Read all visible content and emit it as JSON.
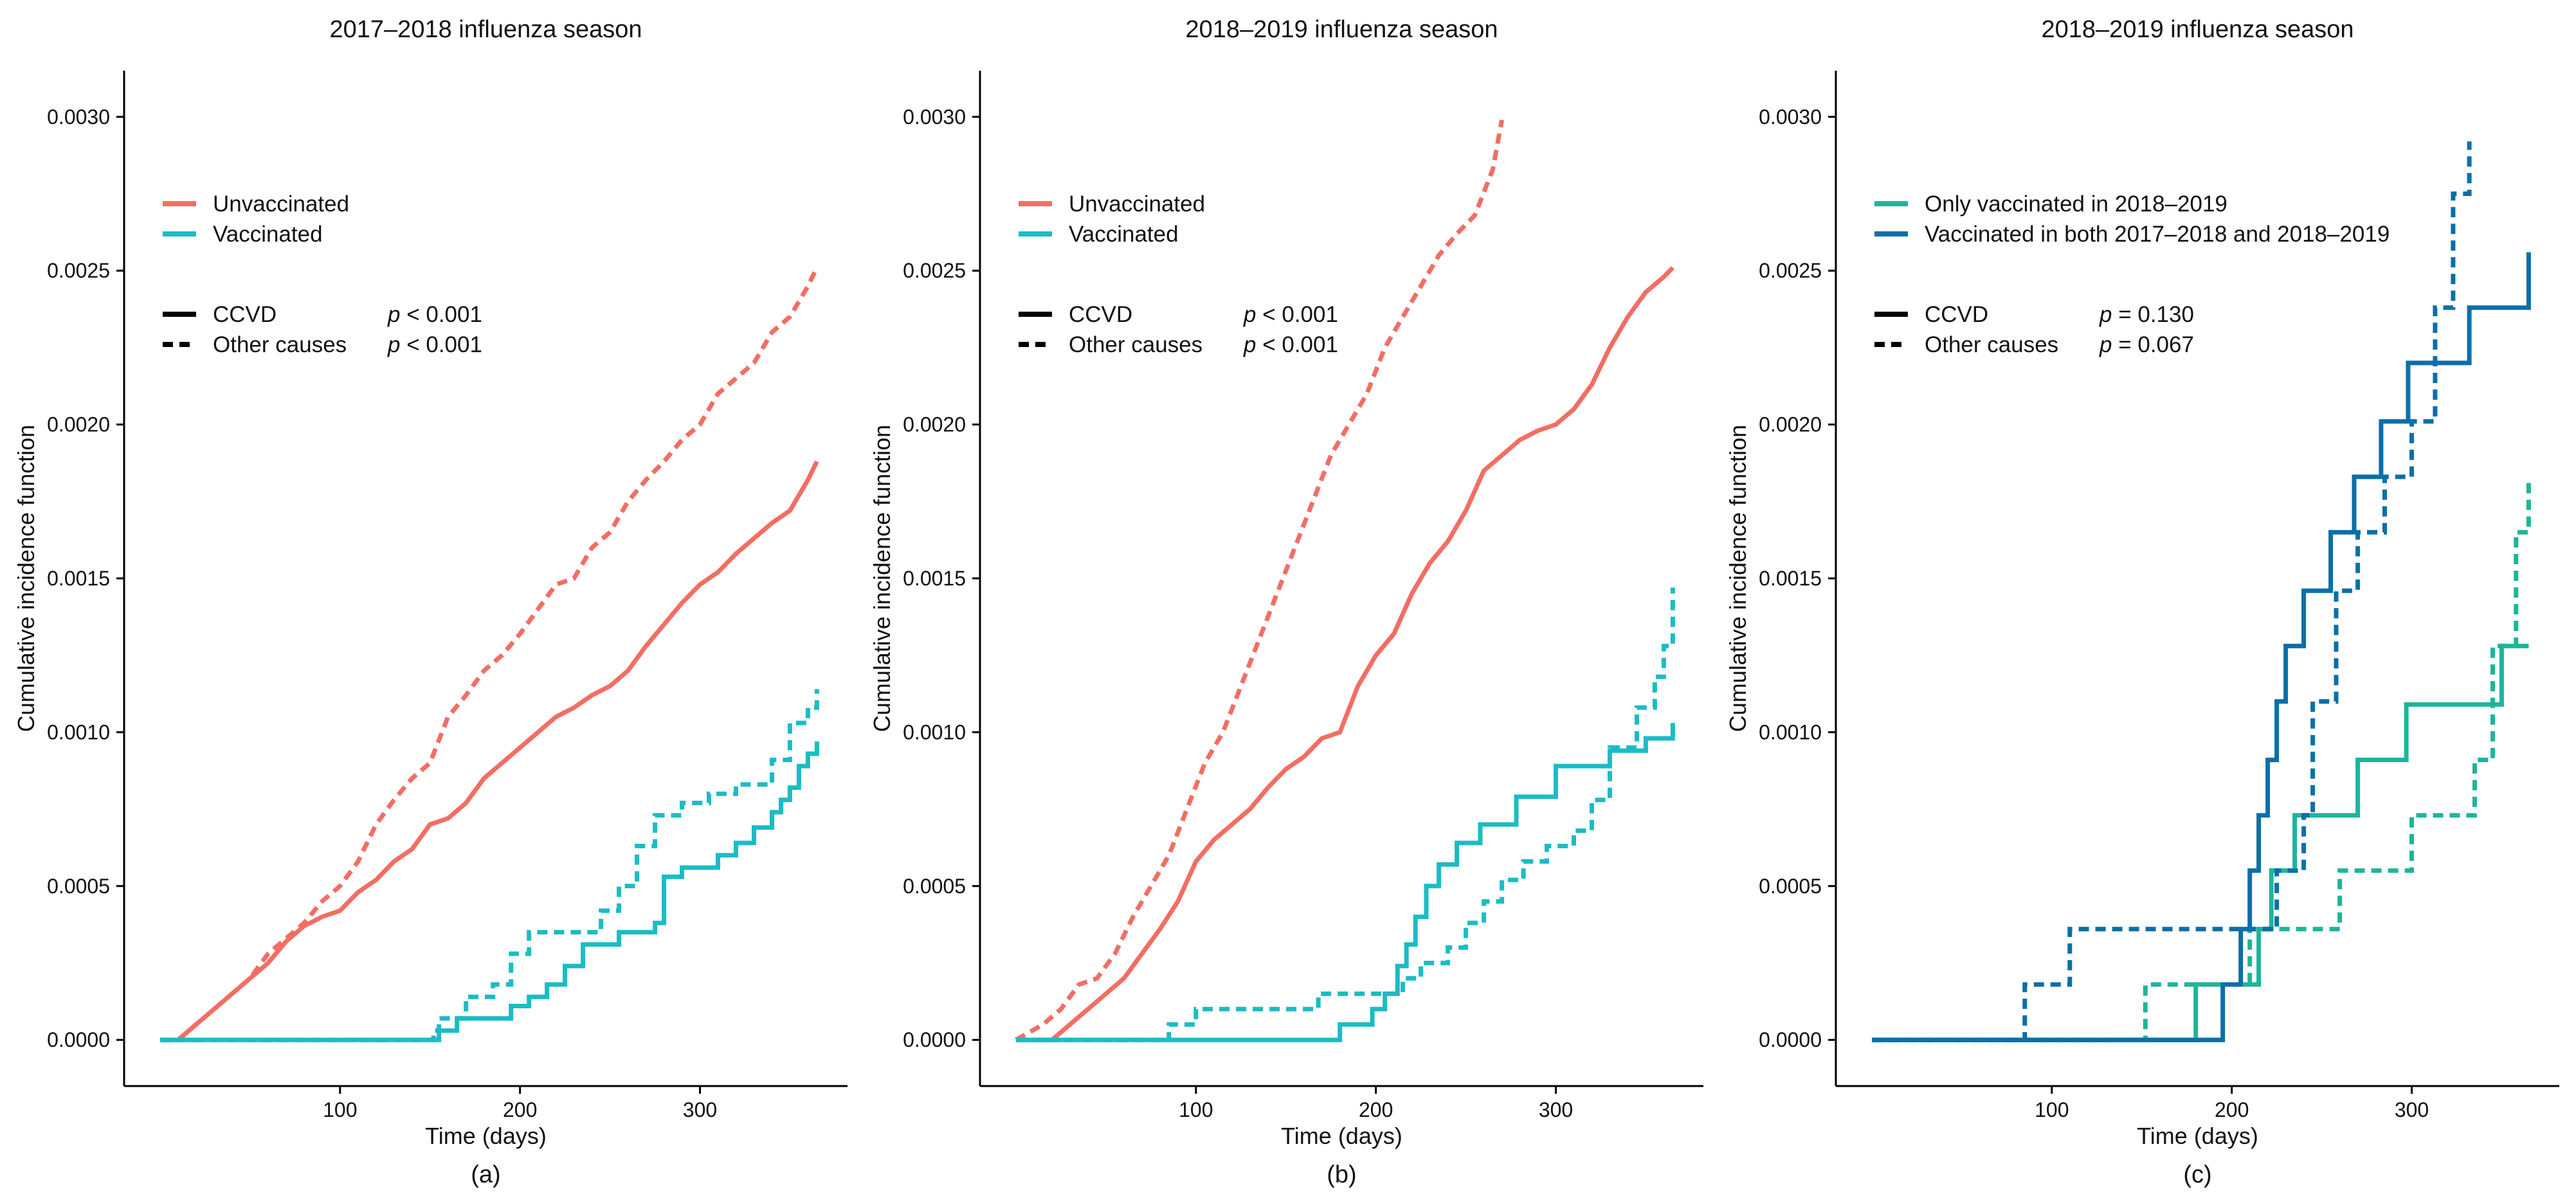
{
  "colors": {
    "unvaccinated": "#F26E63",
    "vaccinated": "#1BBCC4",
    "only2018_2019": "#1DB59A",
    "both_seasons": "#0A6FA8",
    "axis": "#000000",
    "legend_black": "#000000"
  },
  "chart_data": [
    {
      "type": "line",
      "panel_label": "(a)",
      "title": "2017–2018 influenza season",
      "xlabel": "Time (days)",
      "ylabel": "Cumulative incidence function",
      "xlim": [
        -20,
        382
      ],
      "ylim": [
        -0.00015,
        0.00315
      ],
      "xticks": [
        100,
        200,
        300
      ],
      "xtick_labels": [
        "100",
        "200",
        "300"
      ],
      "yticks": [
        0,
        0.0005,
        0.001,
        0.0015,
        0.002,
        0.0025,
        0.003
      ],
      "ytick_labels": [
        "0.0000",
        "0.0005",
        "0.0010",
        "0.0015",
        "0.0020",
        "0.0025",
        "0.0030"
      ],
      "grid": false,
      "legend": {
        "groups": [
          {
            "label": "Unvaccinated",
            "color_key": "unvaccinated"
          },
          {
            "label": "Vaccinated",
            "color_key": "vaccinated"
          }
        ],
        "causes": [
          {
            "label": "CCVD",
            "style": "solid",
            "p_symbol": "p",
            "p_text": "< 0.001"
          },
          {
            "label": "Other causes",
            "style": "dashed",
            "p_symbol": "p",
            "p_text": "< 0.001"
          }
        ]
      },
      "series": [
        {
          "name": "Unvaccinated – CCVD",
          "color_key": "unvaccinated",
          "style": "solid",
          "step": false,
          "x": [
            0,
            10,
            20,
            30,
            40,
            50,
            60,
            70,
            80,
            90,
            100,
            110,
            120,
            130,
            140,
            150,
            160,
            170,
            180,
            190,
            200,
            210,
            220,
            230,
            240,
            250,
            260,
            270,
            280,
            290,
            300,
            310,
            320,
            330,
            340,
            350,
            360,
            365
          ],
          "y": [
            0,
            0,
            5e-05,
            0.0001,
            0.00015,
            0.0002,
            0.00025,
            0.00032,
            0.00037,
            0.0004,
            0.00042,
            0.00048,
            0.00052,
            0.00058,
            0.00062,
            0.0007,
            0.00072,
            0.00077,
            0.00085,
            0.0009,
            0.00095,
            0.001,
            0.00105,
            0.00108,
            0.00112,
            0.00115,
            0.0012,
            0.00128,
            0.00135,
            0.00142,
            0.00148,
            0.00152,
            0.00158,
            0.00163,
            0.00168,
            0.00172,
            0.00182,
            0.00188
          ]
        },
        {
          "name": "Unvaccinated – Other causes",
          "color_key": "unvaccinated",
          "style": "dashed",
          "step": false,
          "x": [
            0,
            10,
            20,
            30,
            40,
            50,
            60,
            70,
            80,
            90,
            100,
            110,
            120,
            130,
            140,
            150,
            160,
            170,
            180,
            190,
            200,
            210,
            220,
            230,
            240,
            250,
            260,
            270,
            280,
            290,
            300,
            310,
            320,
            330,
            340,
            350,
            360,
            365
          ],
          "y": [
            0,
            0,
            5e-05,
            0.0001,
            0.00015,
            0.0002,
            0.00028,
            0.00033,
            0.00038,
            0.00045,
            0.0005,
            0.00058,
            0.0007,
            0.00078,
            0.00085,
            0.0009,
            0.00105,
            0.00112,
            0.0012,
            0.00125,
            0.00132,
            0.0014,
            0.00148,
            0.0015,
            0.0016,
            0.00165,
            0.00175,
            0.00182,
            0.00188,
            0.00195,
            0.002,
            0.0021,
            0.00215,
            0.0022,
            0.0023,
            0.00235,
            0.00245,
            0.00251
          ]
        },
        {
          "name": "Vaccinated – CCVD",
          "color_key": "vaccinated",
          "style": "solid",
          "step": true,
          "x": [
            0,
            155,
            165,
            185,
            195,
            205,
            215,
            225,
            235,
            255,
            275,
            280,
            290,
            300,
            310,
            320,
            330,
            340,
            345,
            350,
            355,
            360,
            365
          ],
          "y": [
            0,
            3e-05,
            7e-05,
            7e-05,
            0.00011,
            0.00014,
            0.00018,
            0.00024,
            0.00031,
            0.00035,
            0.00038,
            0.00053,
            0.00056,
            0.00056,
            0.0006,
            0.00064,
            0.00069,
            0.00074,
            0.00078,
            0.00082,
            0.00089,
            0.00093,
            0.00097
          ]
        },
        {
          "name": "Vaccinated – Other causes",
          "color_key": "vaccinated",
          "style": "dashed",
          "step": true,
          "x": [
            0,
            152,
            155,
            170,
            185,
            195,
            205,
            225,
            245,
            255,
            265,
            275,
            290,
            305,
            320,
            340,
            350,
            360,
            365
          ],
          "y": [
            0,
            3e-05,
            7e-05,
            0.00014,
            0.00018,
            0.00028,
            0.00035,
            0.00035,
            0.00042,
            0.0005,
            0.00063,
            0.00073,
            0.00077,
            0.0008,
            0.00083,
            0.00091,
            0.00103,
            0.00108,
            0.00114
          ]
        }
      ]
    },
    {
      "type": "line",
      "panel_label": "(b)",
      "title": "2018–2019 influenza season",
      "xlabel": "Time (days)",
      "ylabel": "Cumulative incidence function",
      "xlim": [
        -20,
        382
      ],
      "ylim": [
        -0.00015,
        0.00315
      ],
      "xticks": [
        100,
        200,
        300
      ],
      "xtick_labels": [
        "100",
        "200",
        "300"
      ],
      "yticks": [
        0,
        0.0005,
        0.001,
        0.0015,
        0.002,
        0.0025,
        0.003
      ],
      "ytick_labels": [
        "0.0000",
        "0.0005",
        "0.0010",
        "0.0015",
        "0.0020",
        "0.0025",
        "0.0030"
      ],
      "grid": false,
      "legend": {
        "groups": [
          {
            "label": "Unvaccinated",
            "color_key": "unvaccinated"
          },
          {
            "label": "Vaccinated",
            "color_key": "vaccinated"
          }
        ],
        "causes": [
          {
            "label": "CCVD",
            "style": "solid",
            "p_symbol": "p",
            "p_text": "< 0.001"
          },
          {
            "label": "Other causes",
            "style": "dashed",
            "p_symbol": "p",
            "p_text": "< 0.001"
          }
        ]
      },
      "series": [
        {
          "name": "Unvaccinated – CCVD",
          "color_key": "unvaccinated",
          "style": "solid",
          "step": false,
          "x": [
            0,
            20,
            30,
            40,
            50,
            60,
            70,
            80,
            90,
            100,
            110,
            120,
            130,
            140,
            150,
            160,
            170,
            180,
            190,
            200,
            210,
            220,
            230,
            240,
            250,
            260,
            270,
            280,
            290,
            300,
            310,
            320,
            330,
            340,
            350,
            360,
            365
          ],
          "y": [
            0,
            0,
            5e-05,
            0.0001,
            0.00015,
            0.0002,
            0.00028,
            0.00036,
            0.00045,
            0.00058,
            0.00065,
            0.0007,
            0.00075,
            0.00082,
            0.00088,
            0.00092,
            0.00098,
            0.001,
            0.00115,
            0.00125,
            0.00132,
            0.00145,
            0.00155,
            0.00162,
            0.00172,
            0.00185,
            0.0019,
            0.00195,
            0.00198,
            0.002,
            0.00205,
            0.00213,
            0.00225,
            0.00235,
            0.00243,
            0.00248,
            0.00251
          ]
        },
        {
          "name": "Unvaccinated – Other causes",
          "color_key": "unvaccinated",
          "style": "dashed",
          "step": false,
          "x": [
            0,
            15,
            25,
            35,
            45,
            55,
            65,
            75,
            85,
            95,
            105,
            115,
            125,
            135,
            145,
            155,
            165,
            175,
            185,
            195,
            205,
            215,
            225,
            235,
            245,
            255,
            265,
            270
          ],
          "y": [
            0,
            5e-05,
            0.0001,
            0.00018,
            0.0002,
            0.00028,
            0.0004,
            0.0005,
            0.0006,
            0.00075,
            0.0009,
            0.001,
            0.00115,
            0.0013,
            0.00145,
            0.0016,
            0.00175,
            0.0019,
            0.002,
            0.0021,
            0.00225,
            0.00235,
            0.00245,
            0.00255,
            0.00262,
            0.00268,
            0.00283,
            0.00299
          ]
        },
        {
          "name": "Vaccinated – CCVD",
          "color_key": "vaccinated",
          "style": "solid",
          "step": true,
          "x": [
            0,
            180,
            198,
            205,
            212,
            217,
            222,
            228,
            235,
            245,
            258,
            278,
            300,
            318,
            330,
            350,
            360,
            365
          ],
          "y": [
            0,
            5e-05,
            0.0001,
            0.00015,
            0.00024,
            0.00031,
            0.0004,
            0.0005,
            0.00057,
            0.00064,
            0.0007,
            0.00079,
            0.00089,
            0.00089,
            0.00094,
            0.00098,
            0.00098,
            0.00103
          ]
        },
        {
          "name": "Vaccinated – Other causes",
          "color_key": "vaccinated",
          "style": "dashed",
          "step": true,
          "x": [
            0,
            85,
            100,
            130,
            168,
            205,
            215,
            225,
            240,
            250,
            260,
            270,
            282,
            295,
            310,
            320,
            330,
            345,
            355,
            360,
            365
          ],
          "y": [
            0,
            5e-05,
            0.0001,
            0.0001,
            0.00015,
            0.00015,
            0.0002,
            0.00025,
            0.0003,
            0.00038,
            0.00045,
            0.00052,
            0.00058,
            0.00063,
            0.00068,
            0.00078,
            0.00095,
            0.00108,
            0.00118,
            0.00128,
            0.00147
          ]
        }
      ]
    },
    {
      "type": "line",
      "panel_label": "(c)",
      "title": "2018–2019 influenza season",
      "xlabel": "Time (days)",
      "ylabel": "Cumulative incidence function",
      "xlim": [
        -20,
        382
      ],
      "ylim": [
        -0.00015,
        0.00315
      ],
      "xticks": [
        100,
        200,
        300
      ],
      "xtick_labels": [
        "100",
        "200",
        "300"
      ],
      "yticks": [
        0,
        0.0005,
        0.001,
        0.0015,
        0.002,
        0.0025,
        0.003
      ],
      "ytick_labels": [
        "0.0000",
        "0.0005",
        "0.0010",
        "0.0015",
        "0.0020",
        "0.0025",
        "0.0030"
      ],
      "grid": false,
      "legend": {
        "groups": [
          {
            "label": "Only vaccinated in 2018–2019",
            "color_key": "only2018_2019"
          },
          {
            "label": "Vaccinated in both 2017–2018 and 2018–2019",
            "color_key": "both_seasons"
          }
        ],
        "causes": [
          {
            "label": "CCVD",
            "style": "solid",
            "p_symbol": "p",
            "p_text": "= 0.130"
          },
          {
            "label": "Other causes",
            "style": "dashed",
            "p_symbol": "p",
            "p_text": "= 0.067"
          }
        ]
      },
      "series": [
        {
          "name": "Only vaccinated in 2018–2019 – CCVD",
          "color_key": "only2018_2019",
          "style": "solid",
          "step": true,
          "x": [
            0,
            180,
            200,
            215,
            222,
            235,
            258,
            270,
            297,
            340,
            350,
            365
          ],
          "y": [
            0,
            0.00018,
            0.00018,
            0.00036,
            0.00055,
            0.00073,
            0.00073,
            0.00091,
            0.00109,
            0.00109,
            0.00128,
            0.00128
          ]
        },
        {
          "name": "Only vaccinated in 2018–2019 – Other causes",
          "color_key": "only2018_2019",
          "style": "dashed",
          "step": true,
          "x": [
            0,
            152,
            180,
            210,
            218,
            260,
            300,
            320,
            335,
            345,
            358,
            365
          ],
          "y": [
            0,
            0.00018,
            0.00018,
            0.00036,
            0.00036,
            0.00055,
            0.00073,
            0.00073,
            0.00091,
            0.00128,
            0.00165,
            0.00183
          ]
        },
        {
          "name": "Vaccinated in both – CCVD",
          "color_key": "both_seasons",
          "style": "solid",
          "step": true,
          "x": [
            0,
            195,
            205,
            210,
            215,
            220,
            225,
            230,
            240,
            255,
            268,
            283,
            298,
            318,
            332,
            355,
            365
          ],
          "y": [
            0,
            0.00018,
            0.00036,
            0.00055,
            0.00073,
            0.00091,
            0.0011,
            0.00128,
            0.00146,
            0.00165,
            0.00183,
            0.00201,
            0.0022,
            0.0022,
            0.00238,
            0.00238,
            0.00256
          ]
        },
        {
          "name": "Vaccinated in both – Other causes",
          "color_key": "both_seasons",
          "style": "dashed",
          "step": true,
          "x": [
            0,
            85,
            110,
            185,
            210,
            225,
            240,
            245,
            258,
            270,
            285,
            300,
            313,
            323,
            330,
            332
          ],
          "y": [
            0,
            0.00018,
            0.00036,
            0.00036,
            0.00036,
            0.00055,
            0.00073,
            0.0011,
            0.00146,
            0.00165,
            0.00183,
            0.00201,
            0.00238,
            0.00275,
            0.00275,
            0.00292
          ]
        }
      ]
    }
  ]
}
